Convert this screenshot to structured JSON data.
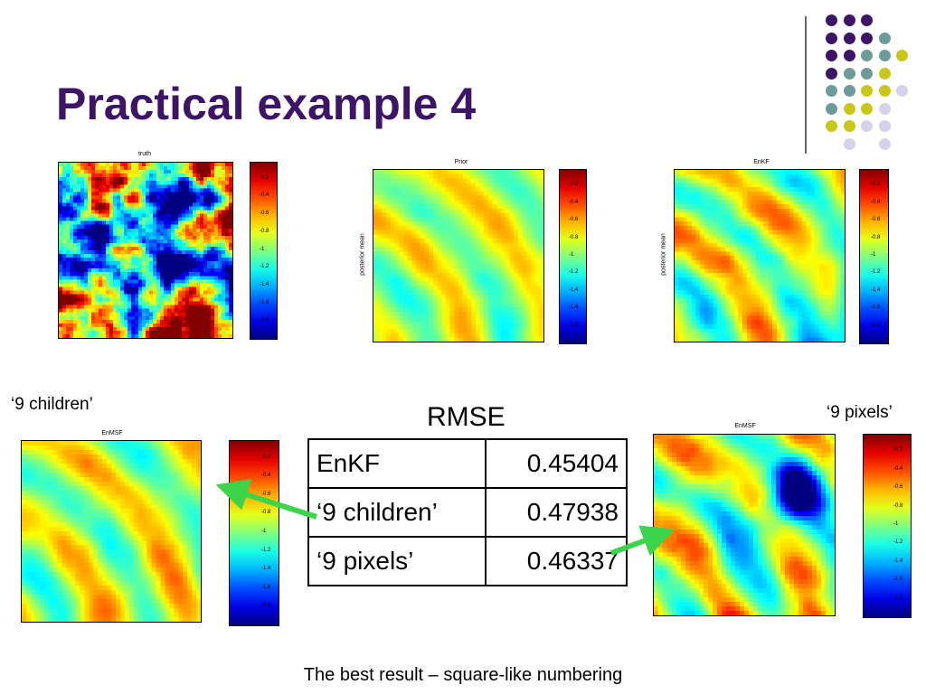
{
  "slide": {
    "title": "Practical example 4",
    "caption": "The best result – square-like numbering"
  },
  "colors": {
    "title": "#3d1466",
    "dot_purple": "#3d1466",
    "dot_teal": "#6f9a9a",
    "dot_yellow": "#c9c81a",
    "dot_lavender": "#d5d3ea",
    "arrow": "#3bd44a"
  },
  "plots": {
    "truth": {
      "title": "truth",
      "ylabel": ""
    },
    "prior": {
      "title": "Prior",
      "ylabel": "posterior mean"
    },
    "enkf": {
      "title": "EnKF",
      "ylabel": "posterior mean"
    },
    "children": {
      "title": "EnMSF",
      "ylabel": ""
    },
    "pixels": {
      "title": "EnMSF",
      "ylabel": ""
    }
  },
  "colorbar_ticks": [
    "-0.2",
    "-0.4",
    "-0.6",
    "-0.8",
    "-1",
    "-1.2",
    "-1.4",
    "-1.6",
    "-1.8"
  ],
  "labels": {
    "children": "‘9 children’",
    "pixels": "‘9 pixels’"
  },
  "rmse": {
    "title": "RMSE",
    "rows": [
      {
        "name": "EnKF",
        "value": "0.45404"
      },
      {
        "name": "‘9 children’",
        "value": "0.47938"
      },
      {
        "name": "‘9 pixels’",
        "value": "0.46337"
      }
    ]
  }
}
